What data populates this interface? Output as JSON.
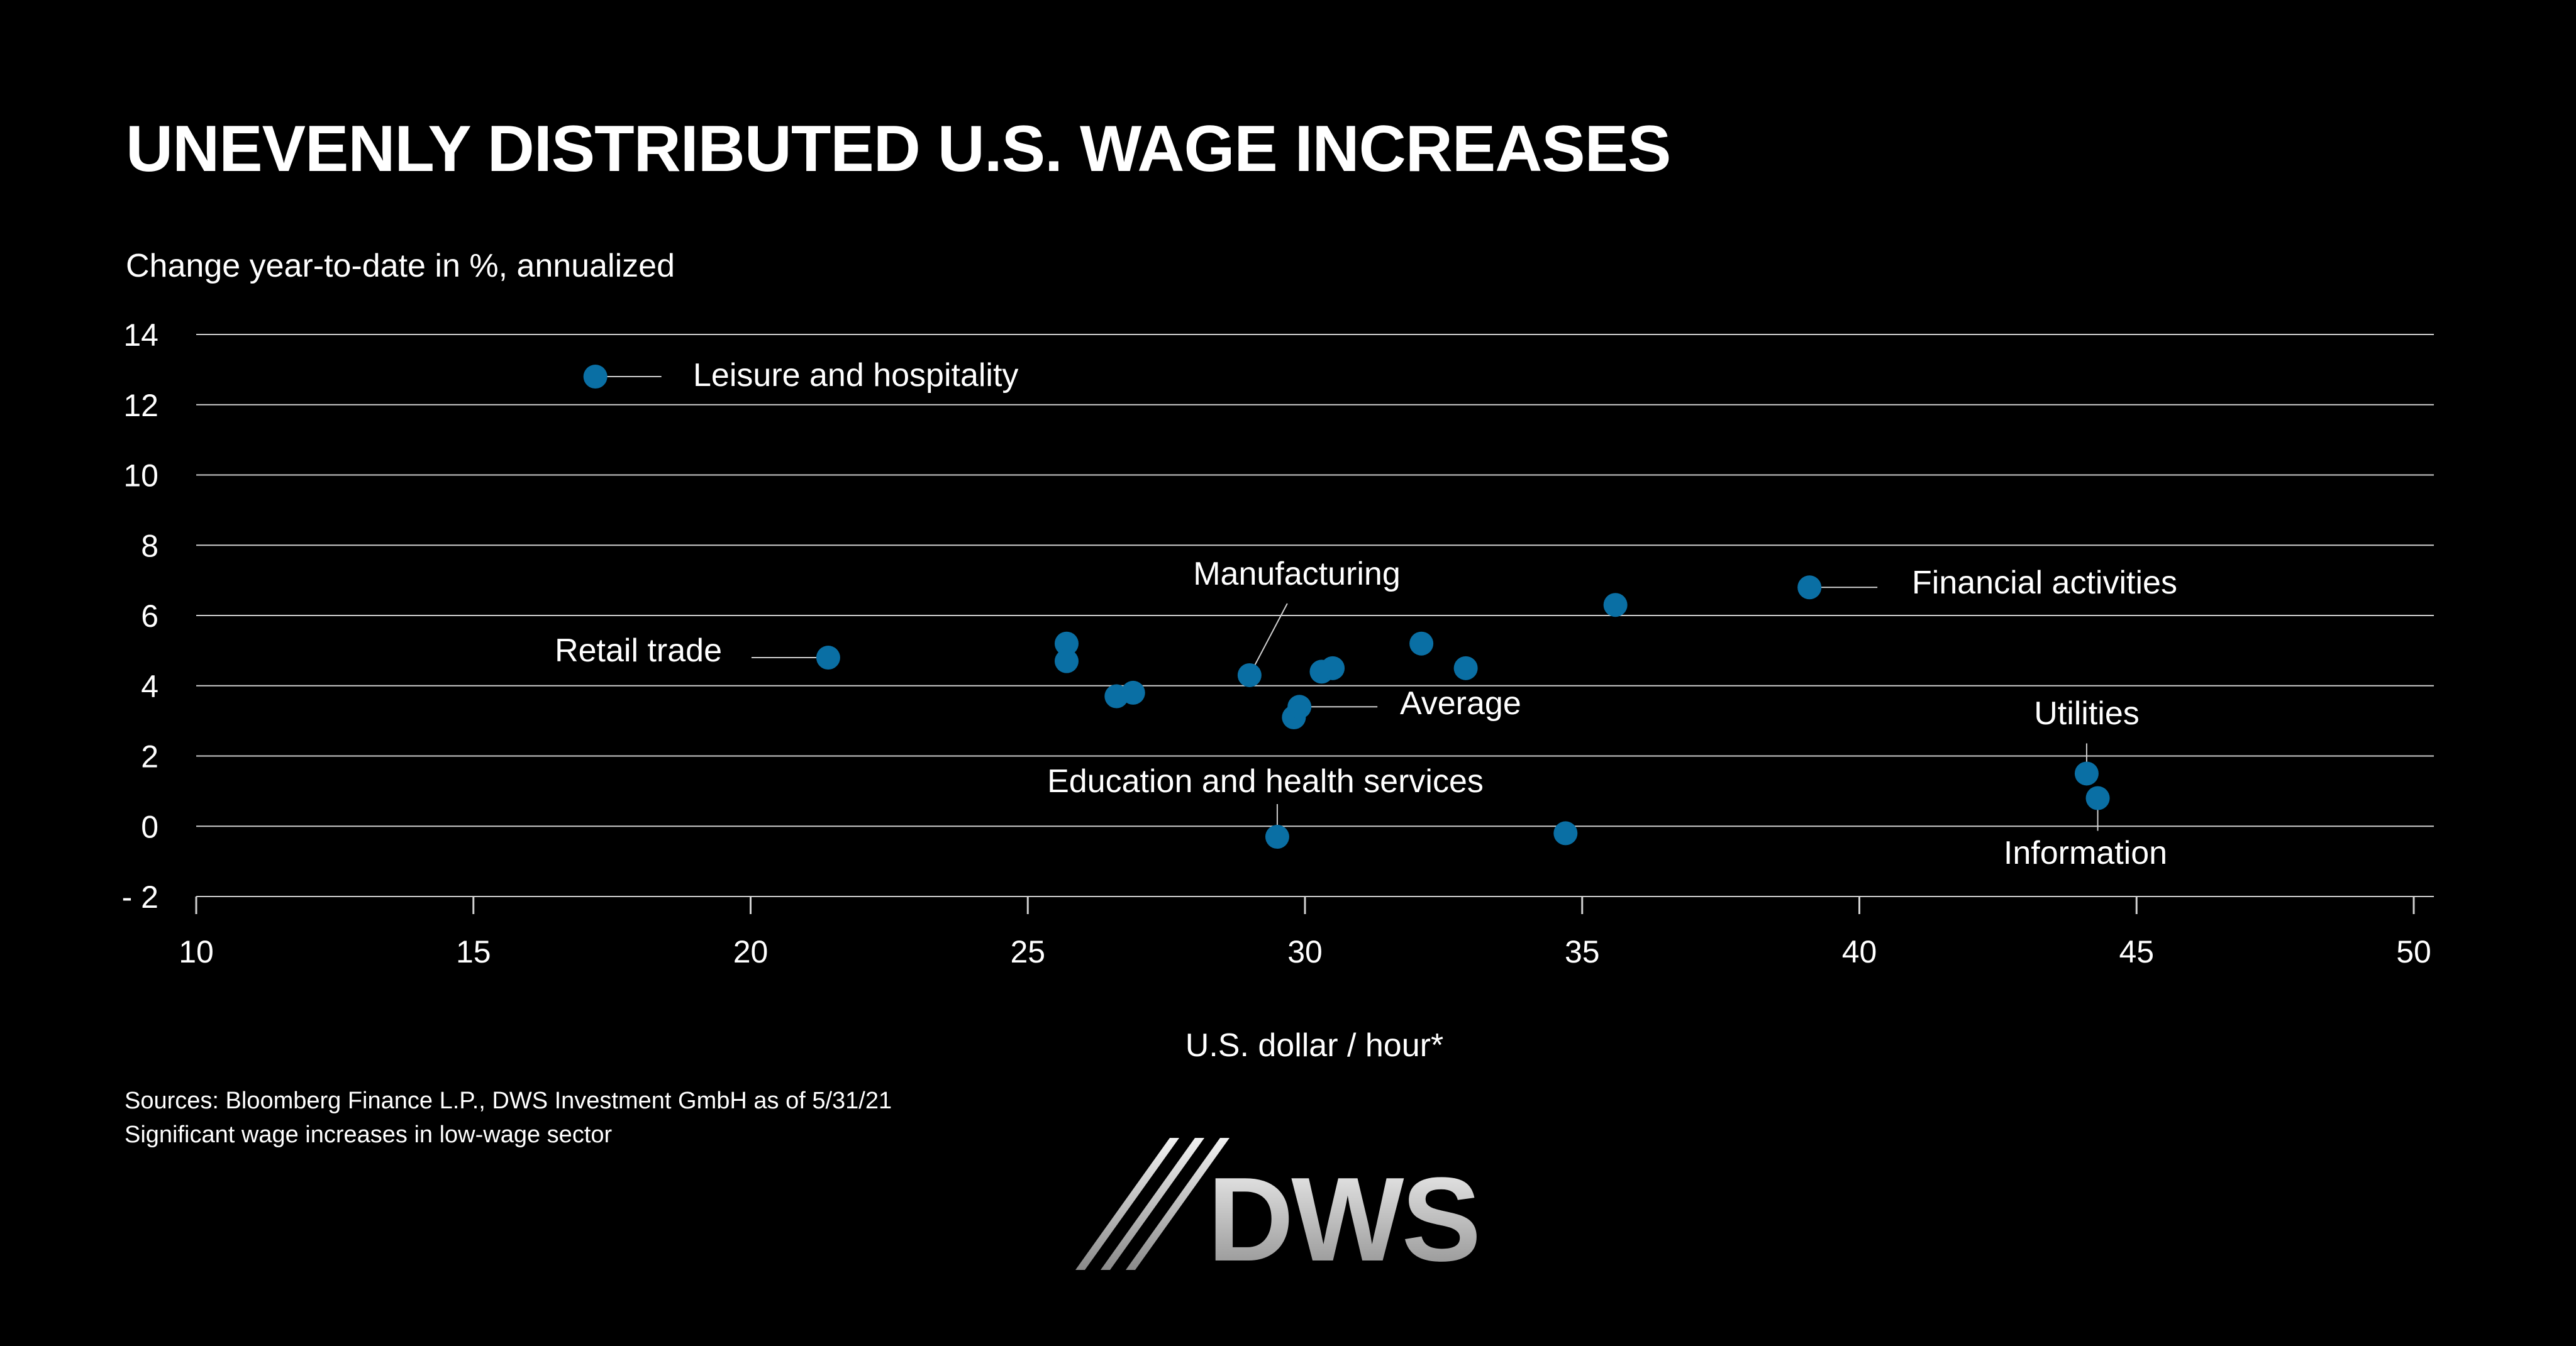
{
  "header": {
    "title": "UNEVENLY DISTRIBUTED U.S. WAGE INCREASES",
    "y_axis_label": "Change year-to-date in %, annualized"
  },
  "footer": {
    "sources": "Sources: Bloomberg Finance L.P., DWS Investment GmbH as of 5/31/21",
    "note": "Significant wage increases in low-wage sector"
  },
  "logo": {
    "text": "DWS"
  },
  "colors": {
    "background": "#000000",
    "point": "#0a6fa4",
    "grid": "#d0d0d0",
    "text": "#ffffff"
  },
  "chart_data": {
    "type": "scatter",
    "title": "UNEVENLY DISTRIBUTED U.S. WAGE INCREASES",
    "xlabel": "U.S. dollar / hour*",
    "ylabel": "Change year-to-date in %, annualized",
    "xlim": [
      10,
      50
    ],
    "ylim": [
      -2,
      14
    ],
    "xticks": [
      10,
      15,
      20,
      25,
      30,
      35,
      40,
      45,
      50
    ],
    "yticks": [
      -2,
      0,
      2,
      4,
      6,
      8,
      10,
      12,
      14
    ],
    "grid": true,
    "points": [
      {
        "x": 17.2,
        "y": 12.8,
        "label": "Leisure and hospitality"
      },
      {
        "x": 21.4,
        "y": 4.8,
        "label": "Retail trade"
      },
      {
        "x": 25.7,
        "y": 5.2,
        "label": ""
      },
      {
        "x": 25.7,
        "y": 4.7,
        "label": ""
      },
      {
        "x": 26.6,
        "y": 3.7,
        "label": ""
      },
      {
        "x": 26.9,
        "y": 3.8,
        "label": ""
      },
      {
        "x": 29.0,
        "y": 4.3,
        "label": "Manufacturing"
      },
      {
        "x": 29.5,
        "y": -0.3,
        "label": "Education and health services"
      },
      {
        "x": 29.8,
        "y": 3.1,
        "label": ""
      },
      {
        "x": 29.9,
        "y": 3.4,
        "label": "Average"
      },
      {
        "x": 30.3,
        "y": 4.4,
        "label": ""
      },
      {
        "x": 30.5,
        "y": 4.5,
        "label": ""
      },
      {
        "x": 32.1,
        "y": 5.2,
        "label": ""
      },
      {
        "x": 32.9,
        "y": 4.5,
        "label": ""
      },
      {
        "x": 34.7,
        "y": -0.2,
        "label": ""
      },
      {
        "x": 35.6,
        "y": 6.3,
        "label": ""
      },
      {
        "x": 39.1,
        "y": 6.8,
        "label": "Financial activities"
      },
      {
        "x": 44.1,
        "y": 1.5,
        "label": "Utilities"
      },
      {
        "x": 44.3,
        "y": 0.8,
        "label": "Information"
      }
    ]
  }
}
